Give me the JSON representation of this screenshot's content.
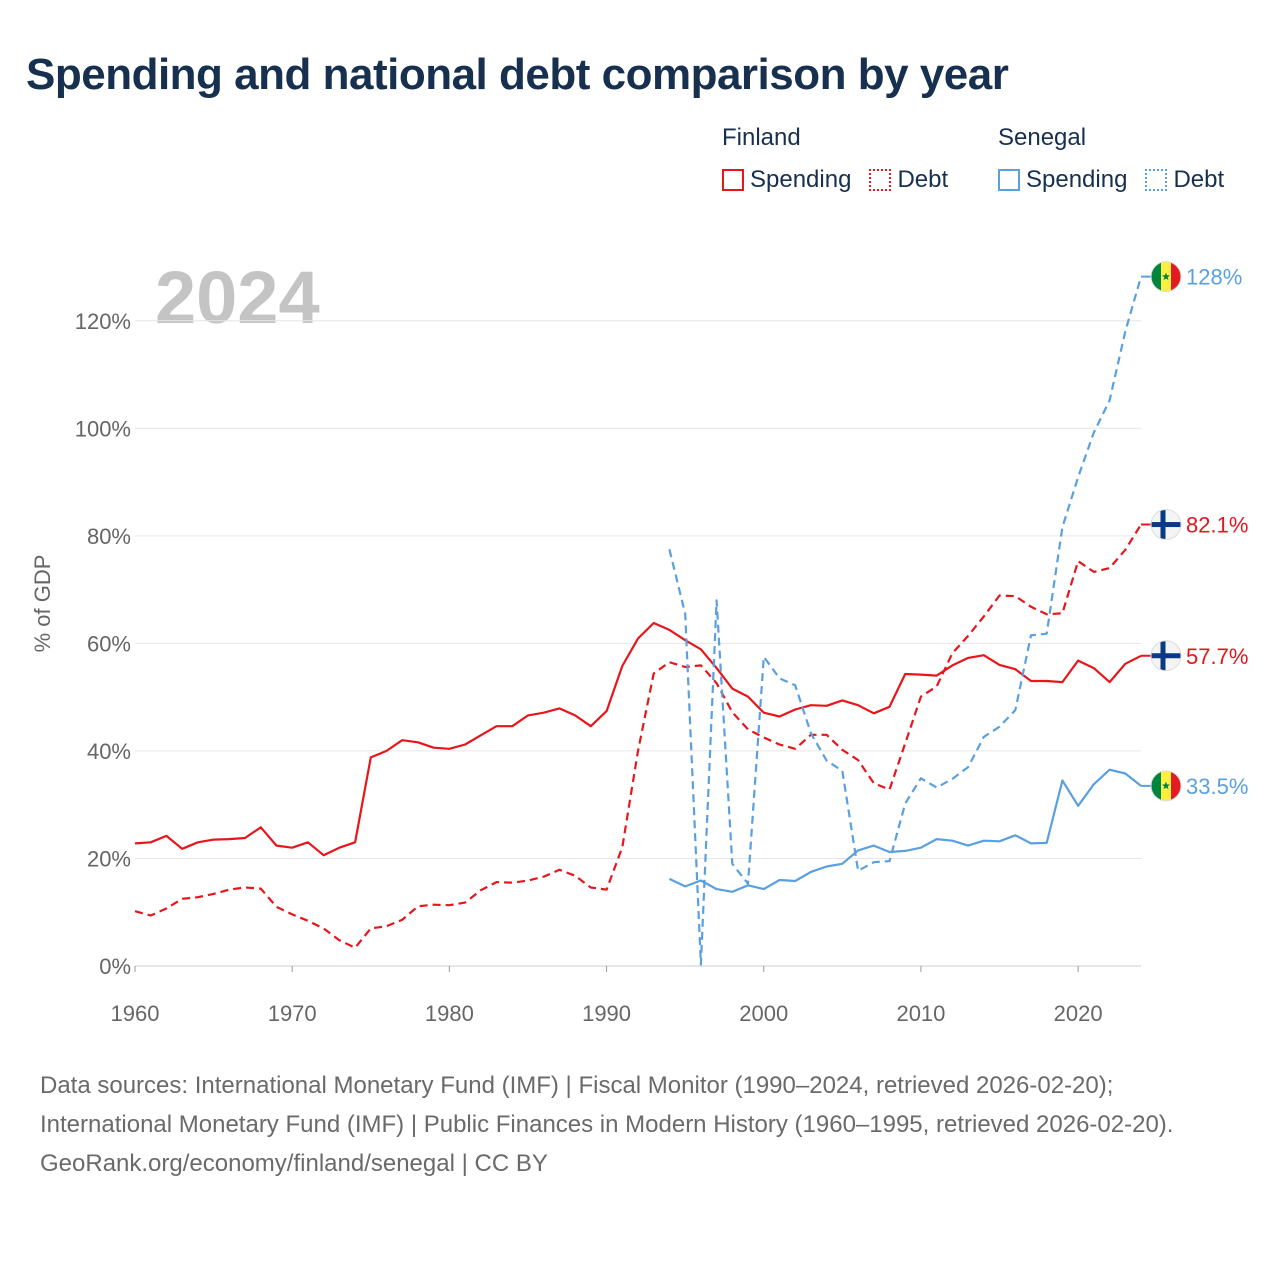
{
  "chart_data": {
    "type": "line",
    "title": "Spending and national debt comparison by year",
    "ylabel": "% of GDP",
    "xlabel": "",
    "year_label": "2024",
    "xlim": [
      1960,
      2024
    ],
    "ylim": [
      0,
      130
    ],
    "x_ticks": [
      1960,
      1970,
      1980,
      1990,
      2000,
      2010,
      2020
    ],
    "y_ticks": [
      0,
      20,
      40,
      60,
      80,
      100,
      120
    ],
    "y_tick_labels": [
      "0%",
      "20%",
      "40%",
      "60%",
      "80%",
      "100%",
      "120%"
    ],
    "legend": {
      "groups": [
        {
          "country": "Finland",
          "items": [
            {
              "label": "Spending",
              "style": "solid",
              "color": "#e8151b"
            },
            {
              "label": "Debt",
              "style": "dotted",
              "color": "#e8151b"
            }
          ]
        },
        {
          "country": "Senegal",
          "items": [
            {
              "label": "Spending",
              "style": "solid",
              "color": "#5aa0e0"
            },
            {
              "label": "Debt",
              "style": "dotted",
              "color": "#5aa0e0"
            }
          ]
        }
      ]
    },
    "series": [
      {
        "name": "Finland Spending",
        "country": "Finland",
        "metric": "Spending",
        "color": "#e8151b",
        "dash": "solid",
        "end_label": "57.7%",
        "flag": "finland",
        "x": [
          1960,
          1961,
          1962,
          1963,
          1964,
          1965,
          1966,
          1967,
          1968,
          1969,
          1970,
          1971,
          1972,
          1973,
          1974,
          1975,
          1976,
          1977,
          1978,
          1979,
          1980,
          1981,
          1982,
          1983,
          1984,
          1985,
          1986,
          1987,
          1988,
          1989,
          1990,
          1991,
          1992,
          1993,
          1994,
          1995,
          1996,
          1997,
          1998,
          1999,
          2000,
          2001,
          2002,
          2003,
          2004,
          2005,
          2006,
          2007,
          2008,
          2009,
          2010,
          2011,
          2012,
          2013,
          2014,
          2015,
          2016,
          2017,
          2018,
          2019,
          2020,
          2021,
          2022,
          2023,
          2024
        ],
        "values": [
          22.8,
          23.0,
          24.2,
          21.8,
          23.0,
          23.5,
          23.6,
          23.8,
          25.8,
          22.4,
          22.0,
          23.0,
          20.6,
          22.0,
          23.0,
          38.8,
          40.0,
          42.0,
          41.6,
          40.6,
          40.4,
          41.2,
          42.9,
          44.6,
          44.6,
          46.6,
          47.1,
          47.9,
          46.6,
          44.6,
          47.4,
          55.8,
          60.9,
          63.8,
          62.5,
          60.6,
          58.9,
          55.4,
          51.6,
          50.1,
          47.1,
          46.4,
          47.7,
          48.5,
          48.4,
          49.4,
          48.5,
          47.0,
          48.2,
          54.3,
          54.2,
          54.0,
          55.9,
          57.3,
          57.8,
          56.0,
          55.2,
          53.0,
          53.0,
          52.8,
          56.8,
          55.4,
          52.8,
          56.2,
          57.7
        ]
      },
      {
        "name": "Finland Debt",
        "country": "Finland",
        "metric": "Debt",
        "color": "#e8151b",
        "dash": "dashed",
        "end_label": "82.1%",
        "flag": "finland",
        "x": [
          1960,
          1961,
          1962,
          1963,
          1964,
          1965,
          1966,
          1967,
          1968,
          1969,
          1970,
          1971,
          1972,
          1973,
          1974,
          1975,
          1976,
          1977,
          1978,
          1979,
          1980,
          1981,
          1982,
          1983,
          1984,
          1985,
          1986,
          1987,
          1988,
          1989,
          1990,
          1991,
          1992,
          1993,
          1994,
          1995,
          1996,
          1997,
          1998,
          1999,
          2000,
          2001,
          2002,
          2003,
          2004,
          2005,
          2006,
          2007,
          2008,
          2009,
          2010,
          2011,
          2012,
          2013,
          2014,
          2015,
          2016,
          2017,
          2018,
          2019,
          2020,
          2021,
          2022,
          2023,
          2024
        ],
        "values": [
          10.2,
          9.4,
          10.7,
          12.5,
          12.8,
          13.4,
          14.2,
          14.6,
          14.4,
          11.0,
          9.6,
          8.4,
          7.0,
          4.8,
          3.4,
          7.0,
          7.4,
          8.6,
          11.1,
          11.4,
          11.3,
          11.8,
          14.1,
          15.6,
          15.5,
          15.9,
          16.6,
          17.9,
          16.8,
          14.6,
          14.2,
          22.1,
          40.0,
          54.4,
          56.5,
          55.6,
          55.9,
          52.6,
          47.2,
          44.0,
          42.5,
          41.2,
          40.4,
          43.0,
          43.0,
          40.2,
          38.3,
          34.0,
          32.8,
          41.4,
          50.1,
          52.0,
          58.2,
          61.4,
          65.0,
          68.9,
          68.8,
          66.8,
          65.4,
          65.6,
          75.3,
          73.3,
          74.0,
          77.4,
          82.1
        ]
      },
      {
        "name": "Senegal Spending",
        "country": "Senegal",
        "metric": "Spending",
        "color": "#5aa0e0",
        "dash": "solid",
        "end_label": "33.5%",
        "flag": "senegal",
        "x": [
          1994,
          1995,
          1996,
          1997,
          1998,
          1999,
          2000,
          2001,
          2002,
          2003,
          2004,
          2005,
          2006,
          2007,
          2008,
          2009,
          2010,
          2011,
          2012,
          2013,
          2014,
          2015,
          2016,
          2017,
          2018,
          2019,
          2020,
          2021,
          2022,
          2023,
          2024
        ],
        "values": [
          16.2,
          14.8,
          15.9,
          14.3,
          13.8,
          15.0,
          14.3,
          16.0,
          15.8,
          17.5,
          18.5,
          19.0,
          21.5,
          22.4,
          21.2,
          21.4,
          22.0,
          23.6,
          23.3,
          22.4,
          23.3,
          23.2,
          24.3,
          22.8,
          22.9,
          34.5,
          29.8,
          33.8,
          36.5,
          35.8,
          33.5
        ]
      },
      {
        "name": "Senegal Debt",
        "country": "Senegal",
        "metric": "Debt",
        "color": "#5aa0e0",
        "dash": "dashed",
        "end_label": "128%",
        "flag": "senegal",
        "x": [
          1994,
          1995,
          1996,
          1997,
          1998,
          1999,
          2000,
          2001,
          2002,
          2003,
          2004,
          2005,
          2006,
          2007,
          2008,
          2009,
          2010,
          2011,
          2012,
          2013,
          2014,
          2015,
          2016,
          2017,
          2018,
          2019,
          2020,
          2021,
          2022,
          2023,
          2024
        ],
        "values": [
          77.5,
          65.5,
          0.3,
          68.0,
          19.0,
          15.3,
          57.5,
          53.5,
          52.2,
          43.3,
          38.2,
          36.3,
          17.7,
          19.3,
          19.5,
          30.2,
          34.9,
          33.2,
          34.8,
          37.0,
          42.6,
          44.5,
          47.6,
          61.5,
          61.8,
          81.6,
          90.9,
          99.2,
          105.2,
          118.0,
          128.2
        ]
      }
    ]
  },
  "footer": {
    "sources": "Data sources: International Monetary Fund (IMF) | Fiscal Monitor (1990–2024, retrieved 2026-02-20); International Monetary Fund (IMF) | Public Finances in Modern History (1960–1995, retrieved 2026-02-20).",
    "credit": "GeoRank.org/economy/finland/senegal | CC BY"
  }
}
